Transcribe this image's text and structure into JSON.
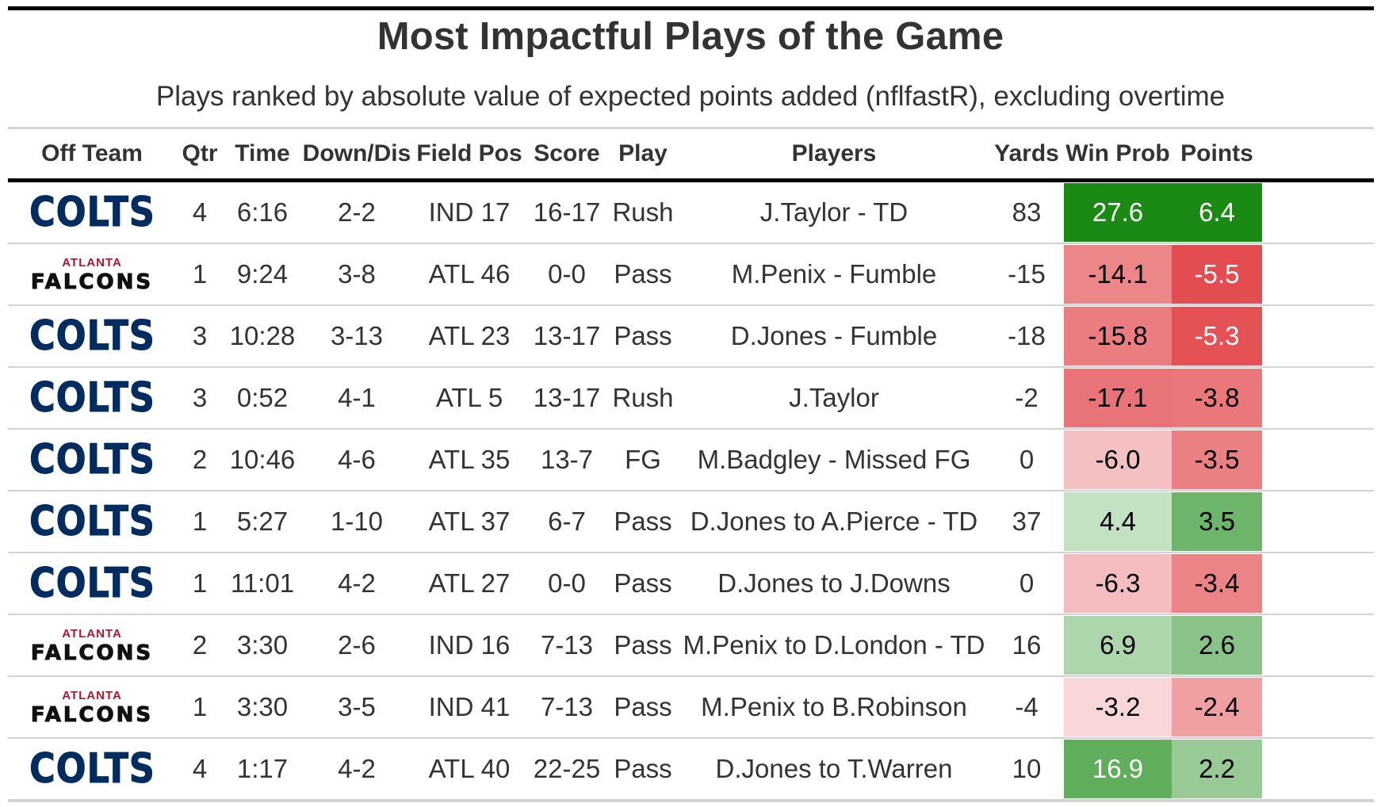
{
  "title": "Most Impactful Plays of the Game",
  "subtitle": "Plays ranked by absolute value of expected points added (nflfastR), excluding overtime",
  "columns": {
    "team": "Off Team",
    "qtr": "Qtr",
    "time": "Time",
    "down": "Down/Dis",
    "field": "Field Pos",
    "score": "Score",
    "play": "Play",
    "players": "Players",
    "yards": "Yards",
    "wp": "Win Prob",
    "points": "Points"
  },
  "logos": {
    "colts": {
      "text": "COLTS",
      "color": "#002c5f"
    },
    "falcons": {
      "top": "ATLANTA",
      "main": "FALCONS",
      "top_color": "#a71930",
      "main_color": "#111111"
    }
  },
  "colors": {
    "positive_max": "#1a8a14",
    "negative_max": "#e0383c",
    "neutral": "#ffffff",
    "text_dark": "#000000",
    "text_light": "#ffffff"
  },
  "chart_data": {
    "type": "table",
    "title": "Most Impactful Plays of the Game",
    "color_scale": {
      "win_prob_range": [
        -27.6,
        27.6
      ],
      "points_range": [
        -6.4,
        6.4
      ]
    },
    "rows": [
      {
        "team": "colts",
        "qtr": "4",
        "time": "6:16",
        "down": "2-2",
        "field": "IND 17",
        "score": "16-17",
        "play": "Rush",
        "players": "J.Taylor - TD",
        "yards": "83",
        "wp": "27.6",
        "points": "6.4",
        "wp_value": 27.6,
        "points_value": 6.4
      },
      {
        "team": "falcons",
        "qtr": "1",
        "time": "9:24",
        "down": "3-8",
        "field": "ATL 46",
        "score": "0-0",
        "play": "Pass",
        "players": "M.Penix - Fumble",
        "yards": "-15",
        "wp": "-14.1",
        "points": "-5.5",
        "wp_value": -14.1,
        "points_value": -5.5
      },
      {
        "team": "colts",
        "qtr": "3",
        "time": "10:28",
        "down": "3-13",
        "field": "ATL 23",
        "score": "13-17",
        "play": "Pass",
        "players": "D.Jones - Fumble",
        "yards": "-18",
        "wp": "-15.8",
        "points": "-5.3",
        "wp_value": -15.8,
        "points_value": -5.3
      },
      {
        "team": "colts",
        "qtr": "3",
        "time": "0:52",
        "down": "4-1",
        "field": "ATL 5",
        "score": "13-17",
        "play": "Rush",
        "players": "J.Taylor",
        "yards": "-2",
        "wp": "-17.1",
        "points": "-3.8",
        "wp_value": -17.1,
        "points_value": -3.8
      },
      {
        "team": "colts",
        "qtr": "2",
        "time": "10:46",
        "down": "4-6",
        "field": "ATL 35",
        "score": "13-7",
        "play": "FG",
        "players": "M.Badgley - Missed FG",
        "yards": "0",
        "wp": "-6.0",
        "points": "-3.5",
        "wp_value": -6.0,
        "points_value": -3.5
      },
      {
        "team": "colts",
        "qtr": "1",
        "time": "5:27",
        "down": "1-10",
        "field": "ATL 37",
        "score": "6-7",
        "play": "Pass",
        "players": "D.Jones to A.Pierce - TD",
        "yards": "37",
        "wp": "4.4",
        "points": "3.5",
        "wp_value": 4.4,
        "points_value": 3.5
      },
      {
        "team": "colts",
        "qtr": "1",
        "time": "11:01",
        "down": "4-2",
        "field": "ATL 27",
        "score": "0-0",
        "play": "Pass",
        "players": "D.Jones to J.Downs",
        "yards": "0",
        "wp": "-6.3",
        "points": "-3.4",
        "wp_value": -6.3,
        "points_value": -3.4
      },
      {
        "team": "falcons",
        "qtr": "2",
        "time": "3:30",
        "down": "2-6",
        "field": "IND 16",
        "score": "7-13",
        "play": "Pass",
        "players": "M.Penix to D.London - TD",
        "yards": "16",
        "wp": "6.9",
        "points": "2.6",
        "wp_value": 6.9,
        "points_value": 2.6
      },
      {
        "team": "falcons",
        "qtr": "1",
        "time": "3:30",
        "down": "3-5",
        "field": "IND 41",
        "score": "7-13",
        "play": "Pass",
        "players": "M.Penix to B.Robinson",
        "yards": "-4",
        "wp": "-3.2",
        "points": "-2.4",
        "wp_value": -3.2,
        "points_value": -2.4
      },
      {
        "team": "colts",
        "qtr": "4",
        "time": "1:17",
        "down": "4-2",
        "field": "ATL 40",
        "score": "22-25",
        "play": "Pass",
        "players": "D.Jones to T.Warren",
        "yards": "10",
        "wp": "16.9",
        "points": "2.2",
        "wp_value": 16.9,
        "points_value": 2.2
      }
    ]
  }
}
